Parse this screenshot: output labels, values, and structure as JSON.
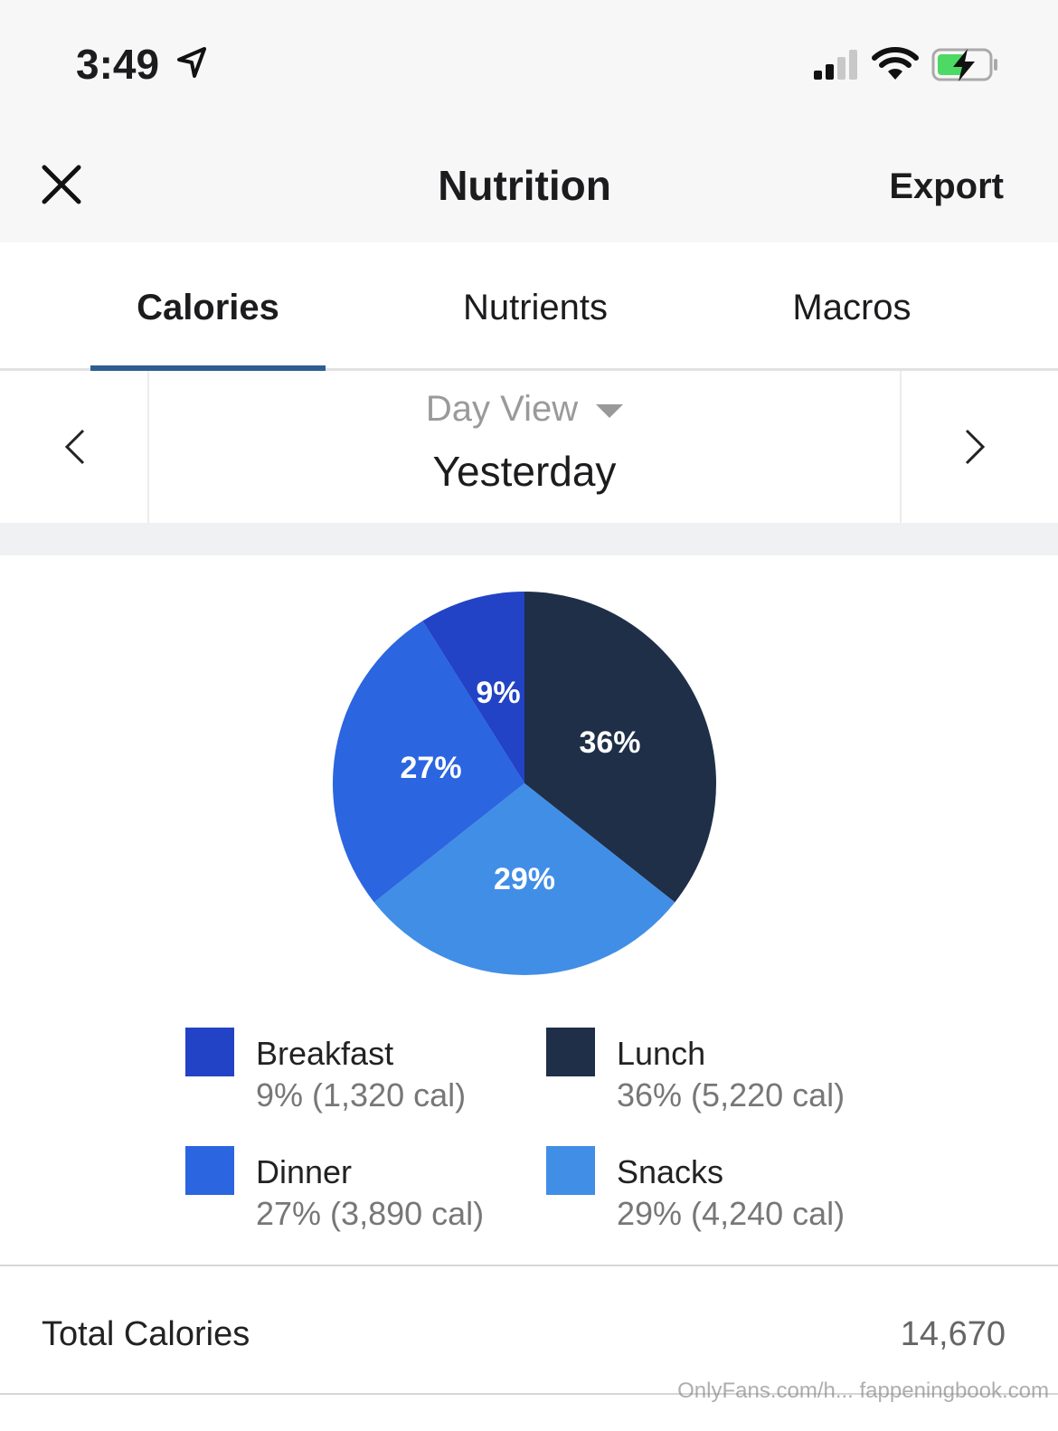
{
  "status_bar": {
    "time": "3:49",
    "icons": [
      "location-arrow-icon",
      "cellular-signal-icon",
      "wifi-icon",
      "battery-charging-icon"
    ],
    "battery_color": "#4cd964"
  },
  "header": {
    "title": "Nutrition",
    "export_label": "Export",
    "close_icon": "close-icon"
  },
  "tabs": [
    {
      "label": "Calories",
      "active": true
    },
    {
      "label": "Nutrients",
      "active": false
    },
    {
      "label": "Macros",
      "active": false
    }
  ],
  "accent_color": "#2f5d8f",
  "date_selector": {
    "view_label": "Day View",
    "date": "Yesterday",
    "prev_icon": "chevron-left-icon",
    "next_icon": "chevron-right-icon"
  },
  "chart_data": {
    "type": "pie",
    "slices": [
      {
        "name": "Lunch",
        "percent": 36,
        "calories": 5220,
        "label": "36%",
        "color": "#1f2f48"
      },
      {
        "name": "Snacks",
        "percent": 29,
        "calories": 4240,
        "label": "29%",
        "color": "#418ee6"
      },
      {
        "name": "Dinner",
        "percent": 27,
        "calories": 3890,
        "label": "27%",
        "color": "#2b65e0"
      },
      {
        "name": "Breakfast",
        "percent": 9,
        "calories": 1320,
        "label": "9%",
        "color": "#2243c5"
      }
    ],
    "start_angle": "12 o'clock, clockwise"
  },
  "legend": [
    {
      "name": "Breakfast",
      "detail": "9% (1,320 cal)",
      "color": "#2243c5"
    },
    {
      "name": "Lunch",
      "detail": "36% (5,220 cal)",
      "color": "#1f2f48"
    },
    {
      "name": "Dinner",
      "detail": "27% (3,890 cal)",
      "color": "#2b65e0"
    },
    {
      "name": "Snacks",
      "detail": "29% (4,240 cal)",
      "color": "#418ee6"
    }
  ],
  "total": {
    "label": "Total Calories",
    "value": "14,670"
  },
  "watermark": "OnlyFans.com/h... fappeningbook.com"
}
